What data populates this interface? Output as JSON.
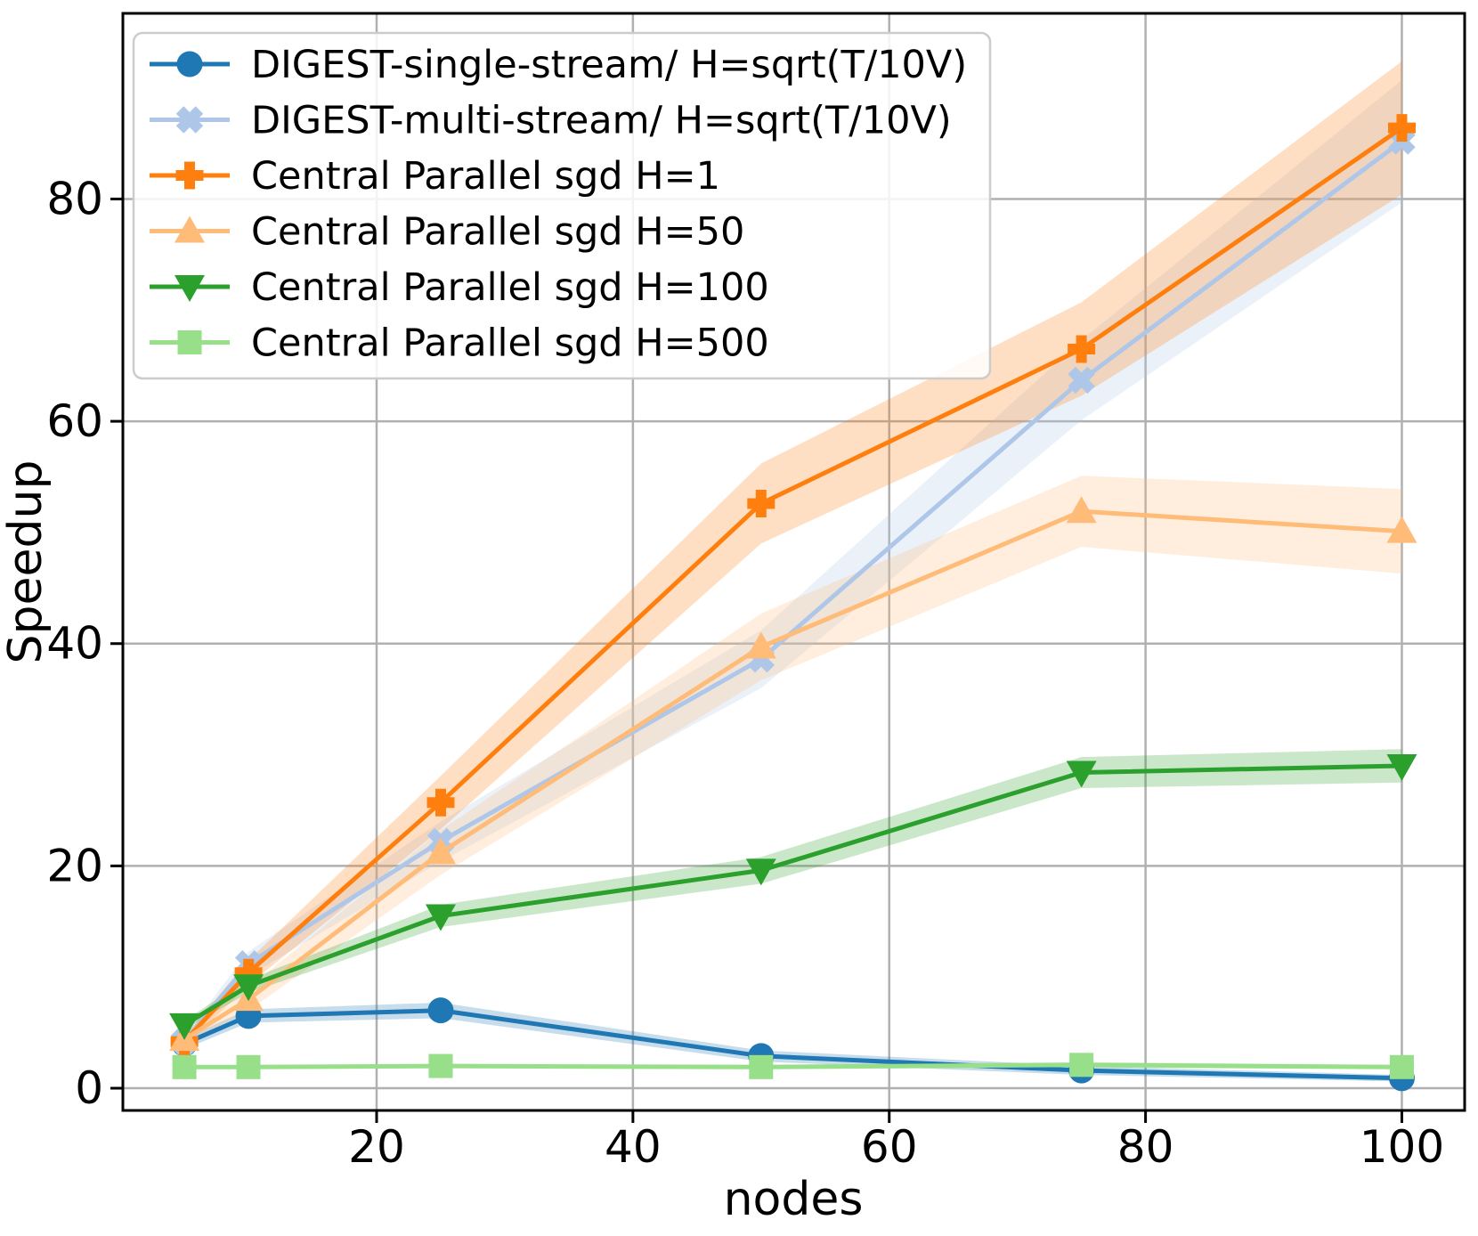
{
  "chart_data": {
    "type": "line",
    "title": "",
    "xlabel": "nodes",
    "ylabel": "Speedup",
    "x": [
      5,
      10,
      25,
      50,
      75,
      100
    ],
    "xticks": [
      20,
      40,
      60,
      80,
      100
    ],
    "yticks": [
      0,
      20,
      40,
      60,
      80
    ],
    "xlim": [
      0.2,
      104.9
    ],
    "ylim": [
      -2.0,
      96.7
    ],
    "grid": true,
    "legend_position": "upper left",
    "series": [
      {
        "name": "DIGEST-single-stream/ H=sqrt(T/10V)",
        "color": "#1f77b4",
        "marker": "circle",
        "values": [
          4.0,
          6.5,
          7.0,
          2.9,
          1.6,
          0.9
        ],
        "err": [
          0.5,
          0.6,
          0.7,
          0.5,
          0.4,
          0.3
        ]
      },
      {
        "name": "DIGEST-multi-stream/ H=sqrt(T/10V)",
        "color": "#aec7e8",
        "marker": "x",
        "values": [
          4.2,
          11.2,
          22.2,
          38.6,
          63.7,
          85.2
        ],
        "err": [
          0.5,
          1.1,
          1.8,
          2.6,
          3.6,
          5.5
        ]
      },
      {
        "name": "Central Parallel sgd H=1",
        "color": "#ff7f0e",
        "marker": "plus",
        "values": [
          4.2,
          10.4,
          25.7,
          52.6,
          66.5,
          86.4
        ],
        "err": [
          0.5,
          1.1,
          2.4,
          3.6,
          4.2,
          6.0
        ]
      },
      {
        "name": "Central Parallel sgd H=50",
        "color": "#ffbb78",
        "marker": "triangle-up",
        "values": [
          4.4,
          8.0,
          21.2,
          39.7,
          51.9,
          50.1
        ],
        "err": [
          0.5,
          1.0,
          2.0,
          3.0,
          3.2,
          3.8
        ]
      },
      {
        "name": "Central Parallel sgd H=100",
        "color": "#2ca02c",
        "marker": "triangle-down",
        "values": [
          5.7,
          9.2,
          15.5,
          19.6,
          28.4,
          29.0
        ],
        "err": [
          0.4,
          0.6,
          1.0,
          1.2,
          1.4,
          1.5
        ]
      },
      {
        "name": "Central Parallel sgd H=500",
        "color": "#98df8a",
        "marker": "square",
        "values": [
          1.9,
          1.9,
          2.0,
          1.9,
          2.1,
          1.9
        ],
        "err": [
          0.15,
          0.15,
          0.2,
          0.2,
          0.25,
          0.2
        ]
      }
    ]
  },
  "style": {
    "grid_color": "#b0b0b0",
    "axis_color": "#000000",
    "legend_border_color": "#cccccc",
    "legend_bg_color": "#ffffff",
    "band_opacity": 0.25
  }
}
